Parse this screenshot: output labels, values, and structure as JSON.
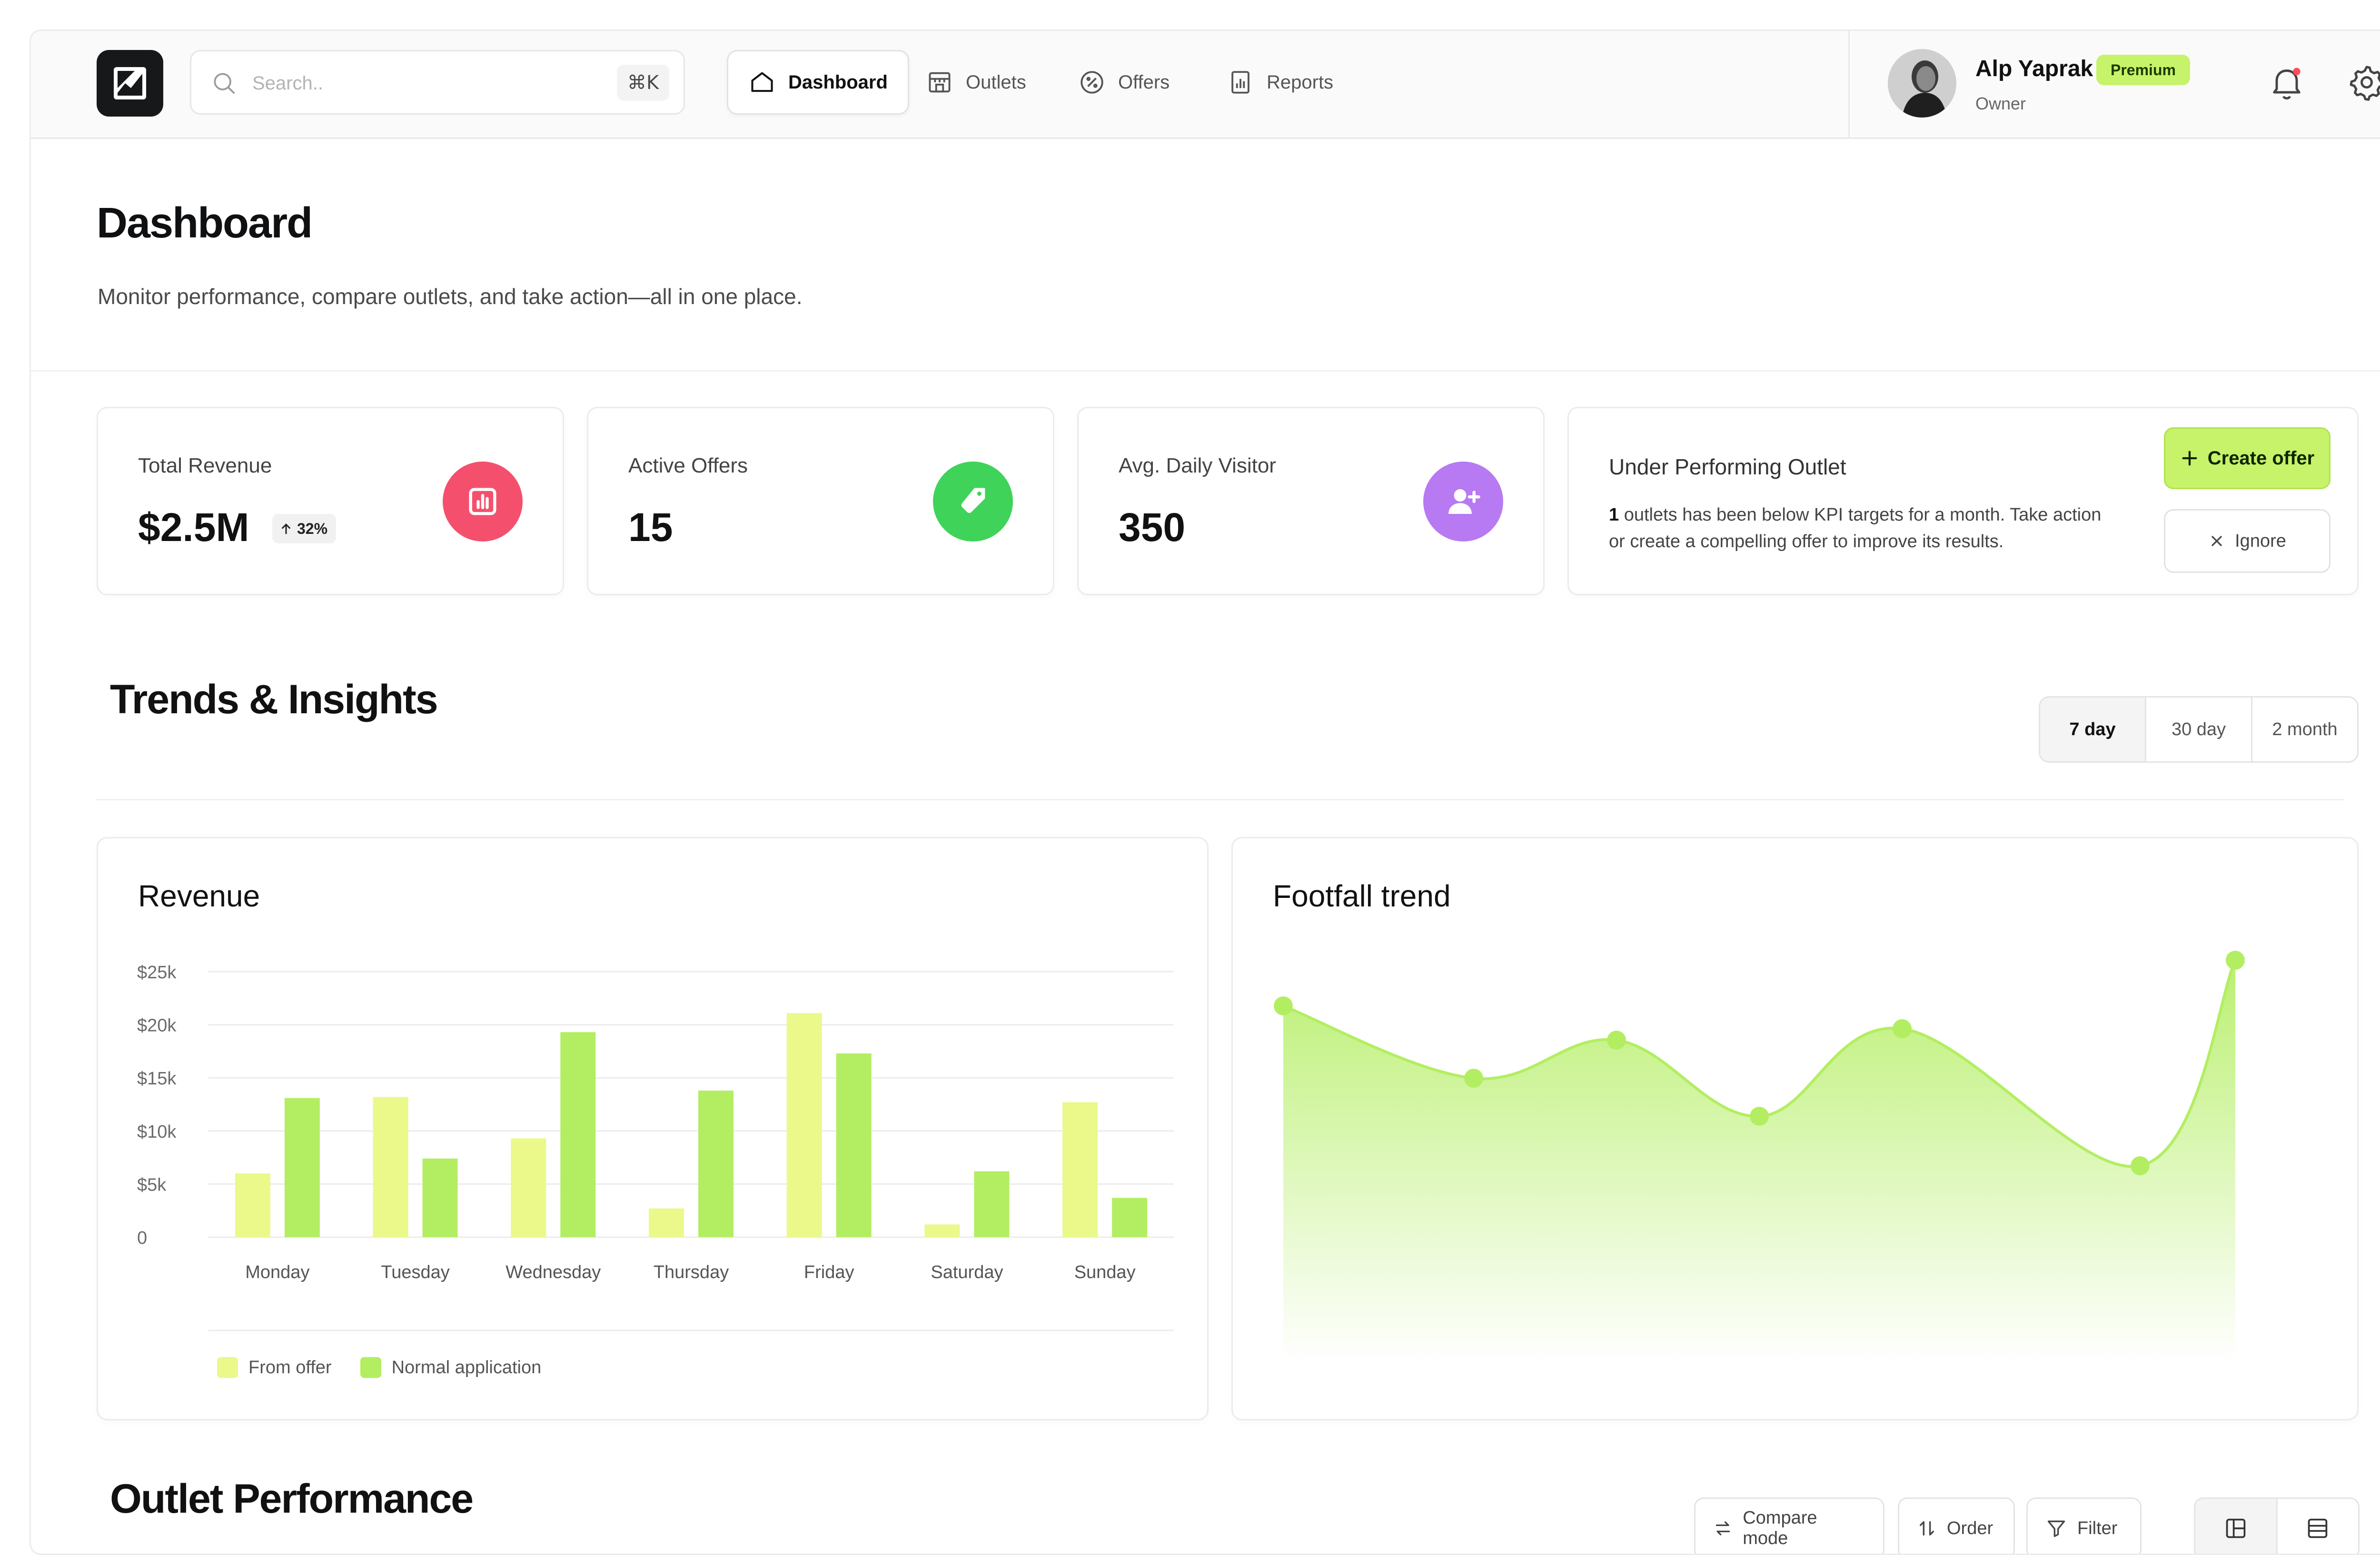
{
  "header": {
    "search": {
      "placeholder": "Search..",
      "shortcut": "⌘K"
    },
    "nav": [
      {
        "label": "Dashboard",
        "icon": "home-icon",
        "active": true
      },
      {
        "label": "Outlets",
        "icon": "store-icon",
        "active": false
      },
      {
        "label": "Offers",
        "icon": "percent-badge-icon",
        "active": false
      },
      {
        "label": "Reports",
        "icon": "report-icon",
        "active": false
      }
    ],
    "user": {
      "name": "Alp Yaprak",
      "badge": "Premium",
      "role": "Owner"
    }
  },
  "page": {
    "title": "Dashboard",
    "subtitle": "Monitor performance, compare outlets, and take action—all in one place."
  },
  "kpis": [
    {
      "label": "Total Revenue",
      "value": "$2.5M",
      "delta": "32%",
      "icon": "bar-chart-icon",
      "color": "#f4506e"
    },
    {
      "label": "Active Offers",
      "value": "15",
      "icon": "tag-icon",
      "color": "#3fd35a"
    },
    {
      "label": "Avg. Daily Visitor",
      "value": "350",
      "icon": "user-plus-icon",
      "color": "#b77af2"
    }
  ],
  "alert": {
    "title": "Under Performing Outlet",
    "count": "1",
    "text_a": " outlets has been below KPI targets for a month. Take action",
    "text_b": "or create a compelling offer to improve its results.",
    "create_label": "Create offer",
    "ignore_label": "Ignore"
  },
  "trends": {
    "title": "Trends & Insights",
    "ranges": [
      "7 day",
      "30 day",
      "2 month"
    ],
    "selected_range": "7 day"
  },
  "chart_data": [
    {
      "type": "bar",
      "title": "Revenue",
      "categories": [
        "Monday",
        "Tuesday",
        "Wednesday",
        "Thursday",
        "Friday",
        "Saturday",
        "Sunday"
      ],
      "series": [
        {
          "name": "From offer",
          "color": "#eaf98a",
          "values": [
            6000,
            13200,
            9300,
            2700,
            21100,
            1200,
            12700
          ]
        },
        {
          "name": "Normal application",
          "color": "#b3ee62",
          "values": [
            13100,
            7400,
            19300,
            13800,
            17300,
            6200,
            3700
          ]
        }
      ],
      "y_ticks": [
        "0",
        "$5k",
        "$10k",
        "$15k",
        "$20k",
        "$25k"
      ],
      "ylim": [
        0,
        25000
      ],
      "grid": true,
      "legend": "bottom-left"
    },
    {
      "type": "area",
      "title": "Footfall trend",
      "x": [
        1,
        2,
        3,
        4,
        5,
        6,
        7,
        8
      ],
      "values": [
        86,
        67,
        77,
        57,
        80,
        44,
        98,
        98
      ],
      "ylim": [
        0,
        100
      ],
      "color": "#b3ee62"
    }
  ],
  "outlets": {
    "title": "Outlet Performance",
    "tools": [
      {
        "label": "Compare mode",
        "icon": "swap-icon"
      },
      {
        "label": "Order",
        "icon": "sort-icon"
      },
      {
        "label": "Filter",
        "icon": "filter-icon"
      }
    ],
    "views": [
      "grid-view-icon",
      "list-view-icon"
    ]
  }
}
